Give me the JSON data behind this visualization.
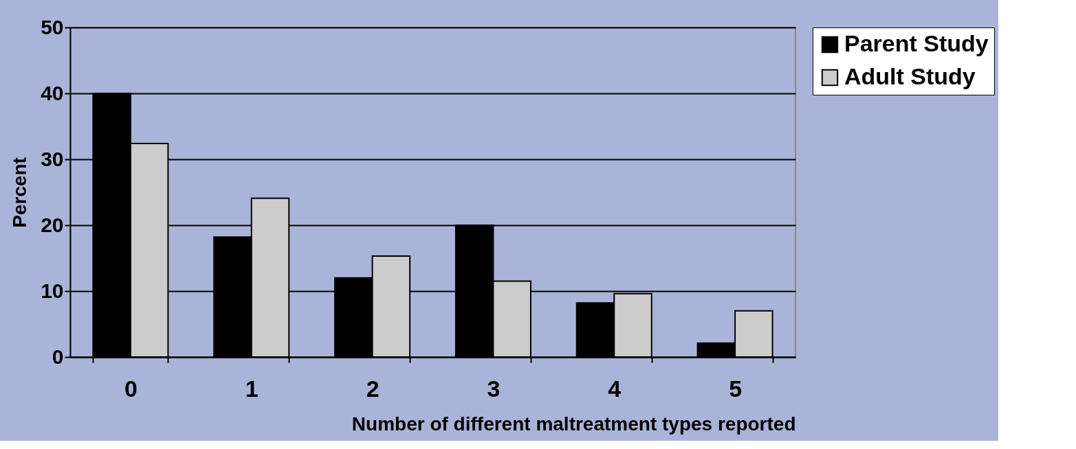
{
  "chart_data": {
    "type": "bar",
    "xlabel": "Number of different maltreatment types reported",
    "ylabel": "Percent",
    "categories": [
      "0",
      "1",
      "2",
      "3",
      "4",
      "5"
    ],
    "series": [
      {
        "name": "Parent Study",
        "color": "#000000",
        "values": [
          40,
          18.2,
          12,
          20,
          8.2,
          2.1
        ]
      },
      {
        "name": "Adult Study",
        "color": "#cccccc",
        "values": [
          32.4,
          24.1,
          15.3,
          11.5,
          9.6,
          7
        ]
      }
    ],
    "ylim": [
      0,
      50
    ],
    "yticks": [
      0,
      10,
      20,
      30,
      40,
      50
    ],
    "grid": "y",
    "legend": "right"
  }
}
